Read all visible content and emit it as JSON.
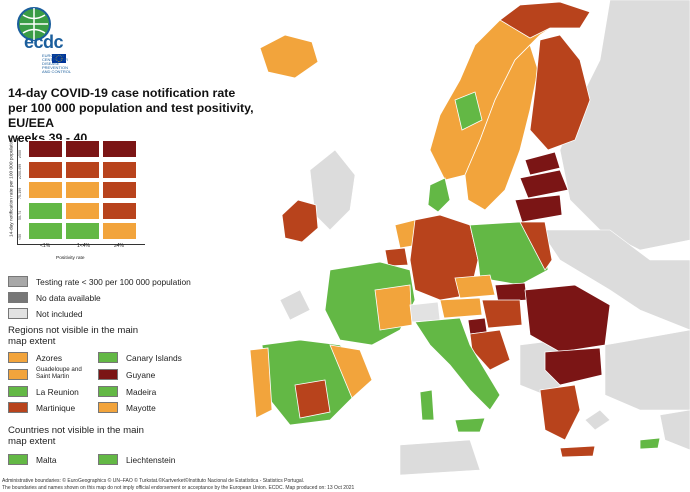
{
  "logo": {
    "text": "ecdc",
    "subtitle": "EUROPEAN CENTRE FOR DISEASE PREVENTION AND CONTROL",
    "icon": "ecdc-globe-logo"
  },
  "title": [
    "14-day COVID-19 case notification rate",
    "per 100 000 population and test positivity, EU/EEA",
    "weeks 39 - 40"
  ],
  "colors": {
    "dark_red": "#7b1515",
    "red": "#b8431c",
    "orange": "#f2a43c",
    "green": "#63b845",
    "grey": "#a8a8a8",
    "dark_grey": "#777777",
    "light_grey": "#e2e2e2",
    "sea": "#ffffff",
    "non_eu": "#dcdcdc"
  },
  "matrix": {
    "y_axis_label": "14-day notification rate per 100 000 population",
    "x_axis_label": "Positivity rate",
    "x_ticks": [
      "<1%",
      "1<4%",
      "≥4%"
    ],
    "y_ticks": [
      "≥500",
      "≥200-499",
      "75-199",
      "50-74",
      "<50"
    ],
    "rows": [
      [
        "dark_red",
        "dark_red",
        "dark_red"
      ],
      [
        "red",
        "red",
        "red"
      ],
      [
        "orange",
        "orange",
        "red"
      ],
      [
        "green",
        "orange",
        "red"
      ],
      [
        "green",
        "green",
        "orange"
      ]
    ]
  },
  "legend": [
    {
      "label": "Testing rate < 300 per 100 000 population",
      "color": "#a8a8a8"
    },
    {
      "label": "No data available",
      "color": "#777777"
    },
    {
      "label": "Not included",
      "color": "#e2e2e2"
    }
  ],
  "regions_heading": "Regions not visible in the main map extent",
  "regions": [
    {
      "label": "Azores",
      "color": "#f2a43c"
    },
    {
      "label": "Canary Islands",
      "color": "#63b845"
    },
    {
      "label": "Guadeloupe and Saint Martin",
      "color": "#f2a43c"
    },
    {
      "label": "Guyane",
      "color": "#7b1515"
    },
    {
      "label": "La Reunion",
      "color": "#63b845"
    },
    {
      "label": "Madeira",
      "color": "#63b845"
    },
    {
      "label": "Martinique",
      "color": "#b8431c"
    },
    {
      "label": "Mayotte",
      "color": "#f2a43c"
    }
  ],
  "countries_heading": "Countries not visible in the main map extent",
  "countries": [
    {
      "label": "Malta",
      "color": "#63b845"
    },
    {
      "label": "Liechtenstein",
      "color": "#63b845"
    }
  ],
  "footer": [
    "Administrative boundaries: © EuroGeographics © UN–FAO © Turkstat.©Kartverket©Instituto Nacional de Estatística - Statistics Portugal.",
    "The boundaries and names shown on this map do not imply official endorsement or acceptance by the European Union. ECDC. Map produced on: 13 Oct 2021"
  ]
}
